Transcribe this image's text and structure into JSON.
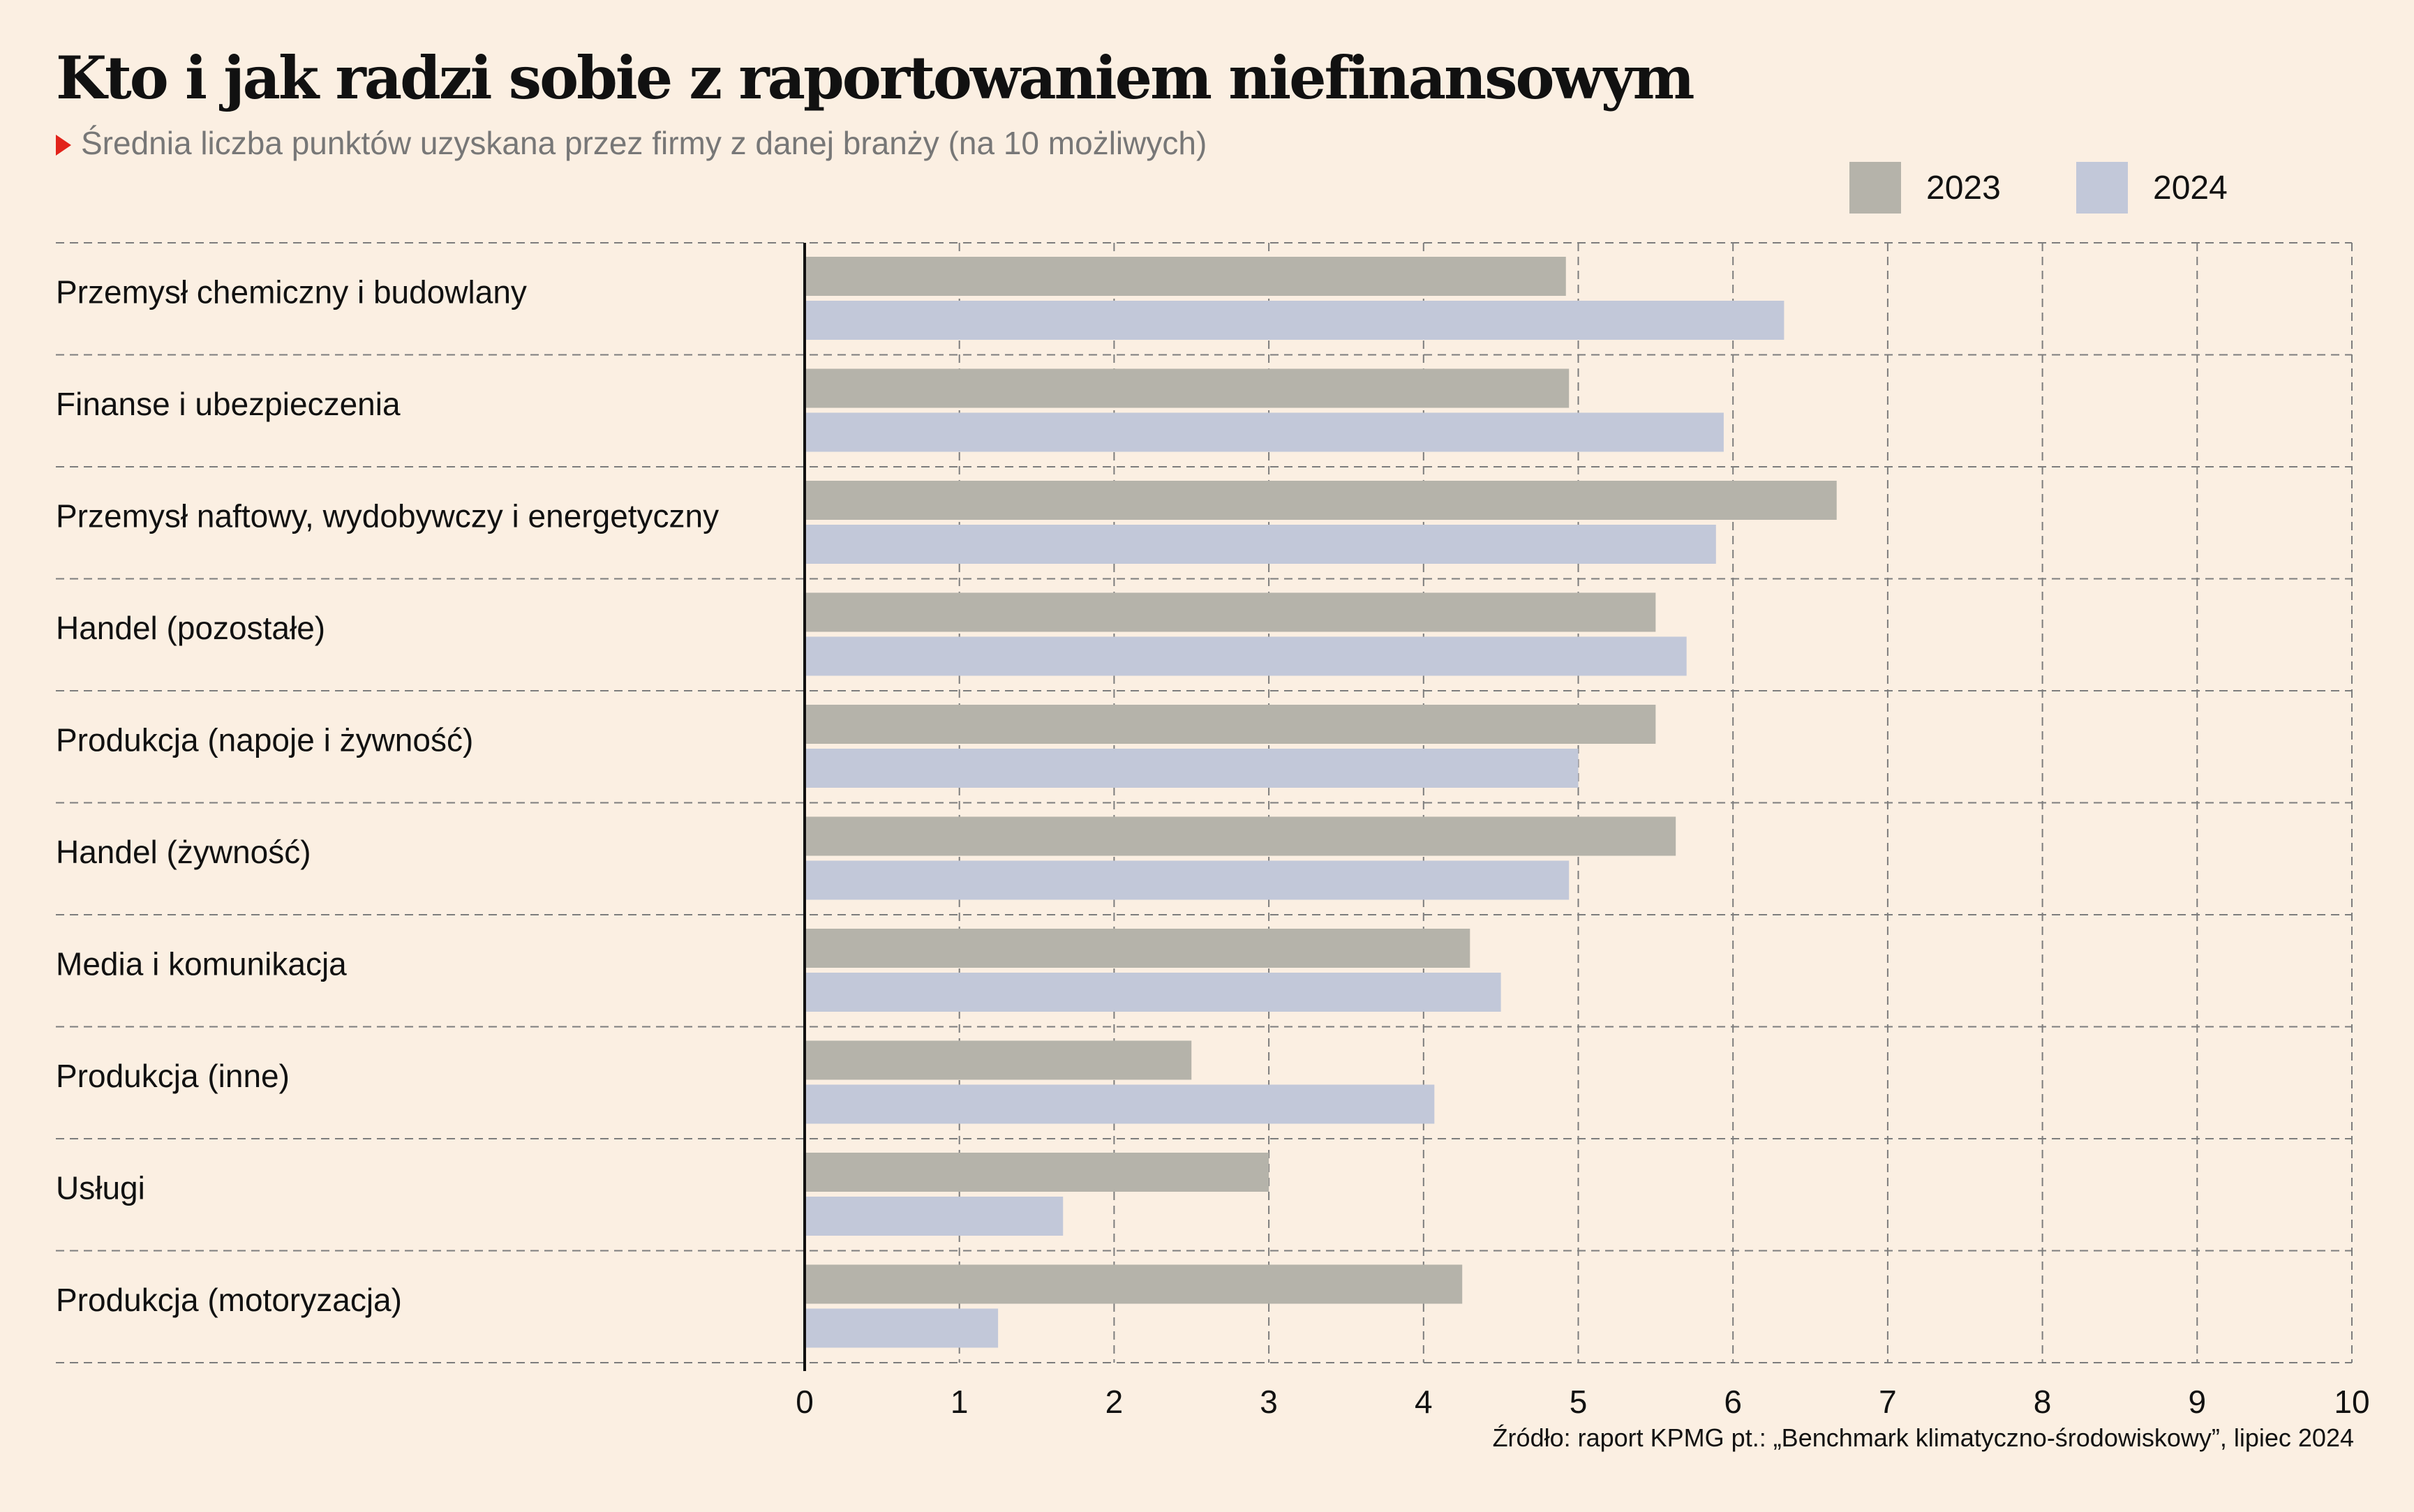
{
  "title": "Kto i jak radzi sobie z raportowaniem niefinansowym",
  "subtitle": "Średnia liczba punktów uzyskana przez firmy z danej branży (na 10 możliwych)",
  "source": "Źródło: raport KPMG pt.: „Benchmark klimatyczno-środowiskowy”, lipiec 2024",
  "colors": {
    "2023": "#b5b3aa",
    "2024": "#c2c8d9",
    "background": "#fbefe2",
    "accent": "#e2231a"
  },
  "chart_data": {
    "type": "bar",
    "orientation": "horizontal",
    "categories": [
      "Przemysł chemiczny i budowlany",
      "Finanse i ubezpieczenia",
      "Przemysł naftowy, wydobywczy i energetyczny",
      "Handel (pozostałe)",
      "Produkcja (napoje i żywność)",
      "Handel (żywność)",
      "Media i komunikacja",
      "Produkcja (inne)",
      "Usługi",
      "Produkcja (motoryzacja)"
    ],
    "series": [
      {
        "name": "2023",
        "values": [
          4.92,
          4.94,
          6.67,
          5.5,
          5.5,
          5.63,
          4.3,
          2.5,
          3.0,
          4.25
        ]
      },
      {
        "name": "2024",
        "values": [
          6.33,
          5.94,
          5.89,
          5.7,
          5.0,
          4.94,
          4.5,
          4.07,
          1.67,
          1.25
        ]
      }
    ],
    "xlim": [
      0,
      10
    ],
    "ticks": [
      "0",
      "1",
      "2",
      "3",
      "4",
      "5",
      "6",
      "7",
      "8",
      "9",
      "10"
    ],
    "grid": true,
    "legend": "top-right"
  }
}
